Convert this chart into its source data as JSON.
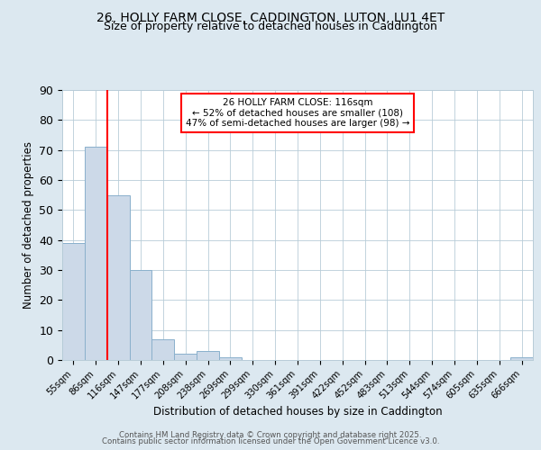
{
  "title_line1": "26, HOLLY FARM CLOSE, CADDINGTON, LUTON, LU1 4ET",
  "title_line2": "Size of property relative to detached houses in Caddington",
  "xlabel": "Distribution of detached houses by size in Caddington",
  "ylabel": "Number of detached properties",
  "bin_labels": [
    "55sqm",
    "86sqm",
    "116sqm",
    "147sqm",
    "177sqm",
    "208sqm",
    "238sqm",
    "269sqm",
    "299sqm",
    "330sqm",
    "361sqm",
    "391sqm",
    "422sqm",
    "452sqm",
    "483sqm",
    "513sqm",
    "544sqm",
    "574sqm",
    "605sqm",
    "635sqm",
    "666sqm"
  ],
  "bar_values": [
    39,
    71,
    55,
    30,
    7,
    2,
    3,
    1,
    0,
    0,
    0,
    0,
    0,
    0,
    0,
    0,
    0,
    0,
    0,
    0,
    1
  ],
  "bar_color": "#ccd9e8",
  "bar_edgecolor": "#8ab0cc",
  "red_line_x": 1.5,
  "annotation_text": "26 HOLLY FARM CLOSE: 116sqm\n← 52% of detached houses are smaller (108)\n47% of semi-detached houses are larger (98) →",
  "annotation_box_color": "white",
  "annotation_box_edgecolor": "red",
  "ylim": [
    0,
    90
  ],
  "yticks": [
    0,
    10,
    20,
    30,
    40,
    50,
    60,
    70,
    80,
    90
  ],
  "background_color": "#dce8f0",
  "plot_background": "white",
  "grid_color": "#b8ccd8",
  "title_fontsize": 10,
  "subtitle_fontsize": 9,
  "footer_line1": "Contains HM Land Registry data © Crown copyright and database right 2025.",
  "footer_line2": "Contains public sector information licensed under the Open Government Licence v3.0."
}
